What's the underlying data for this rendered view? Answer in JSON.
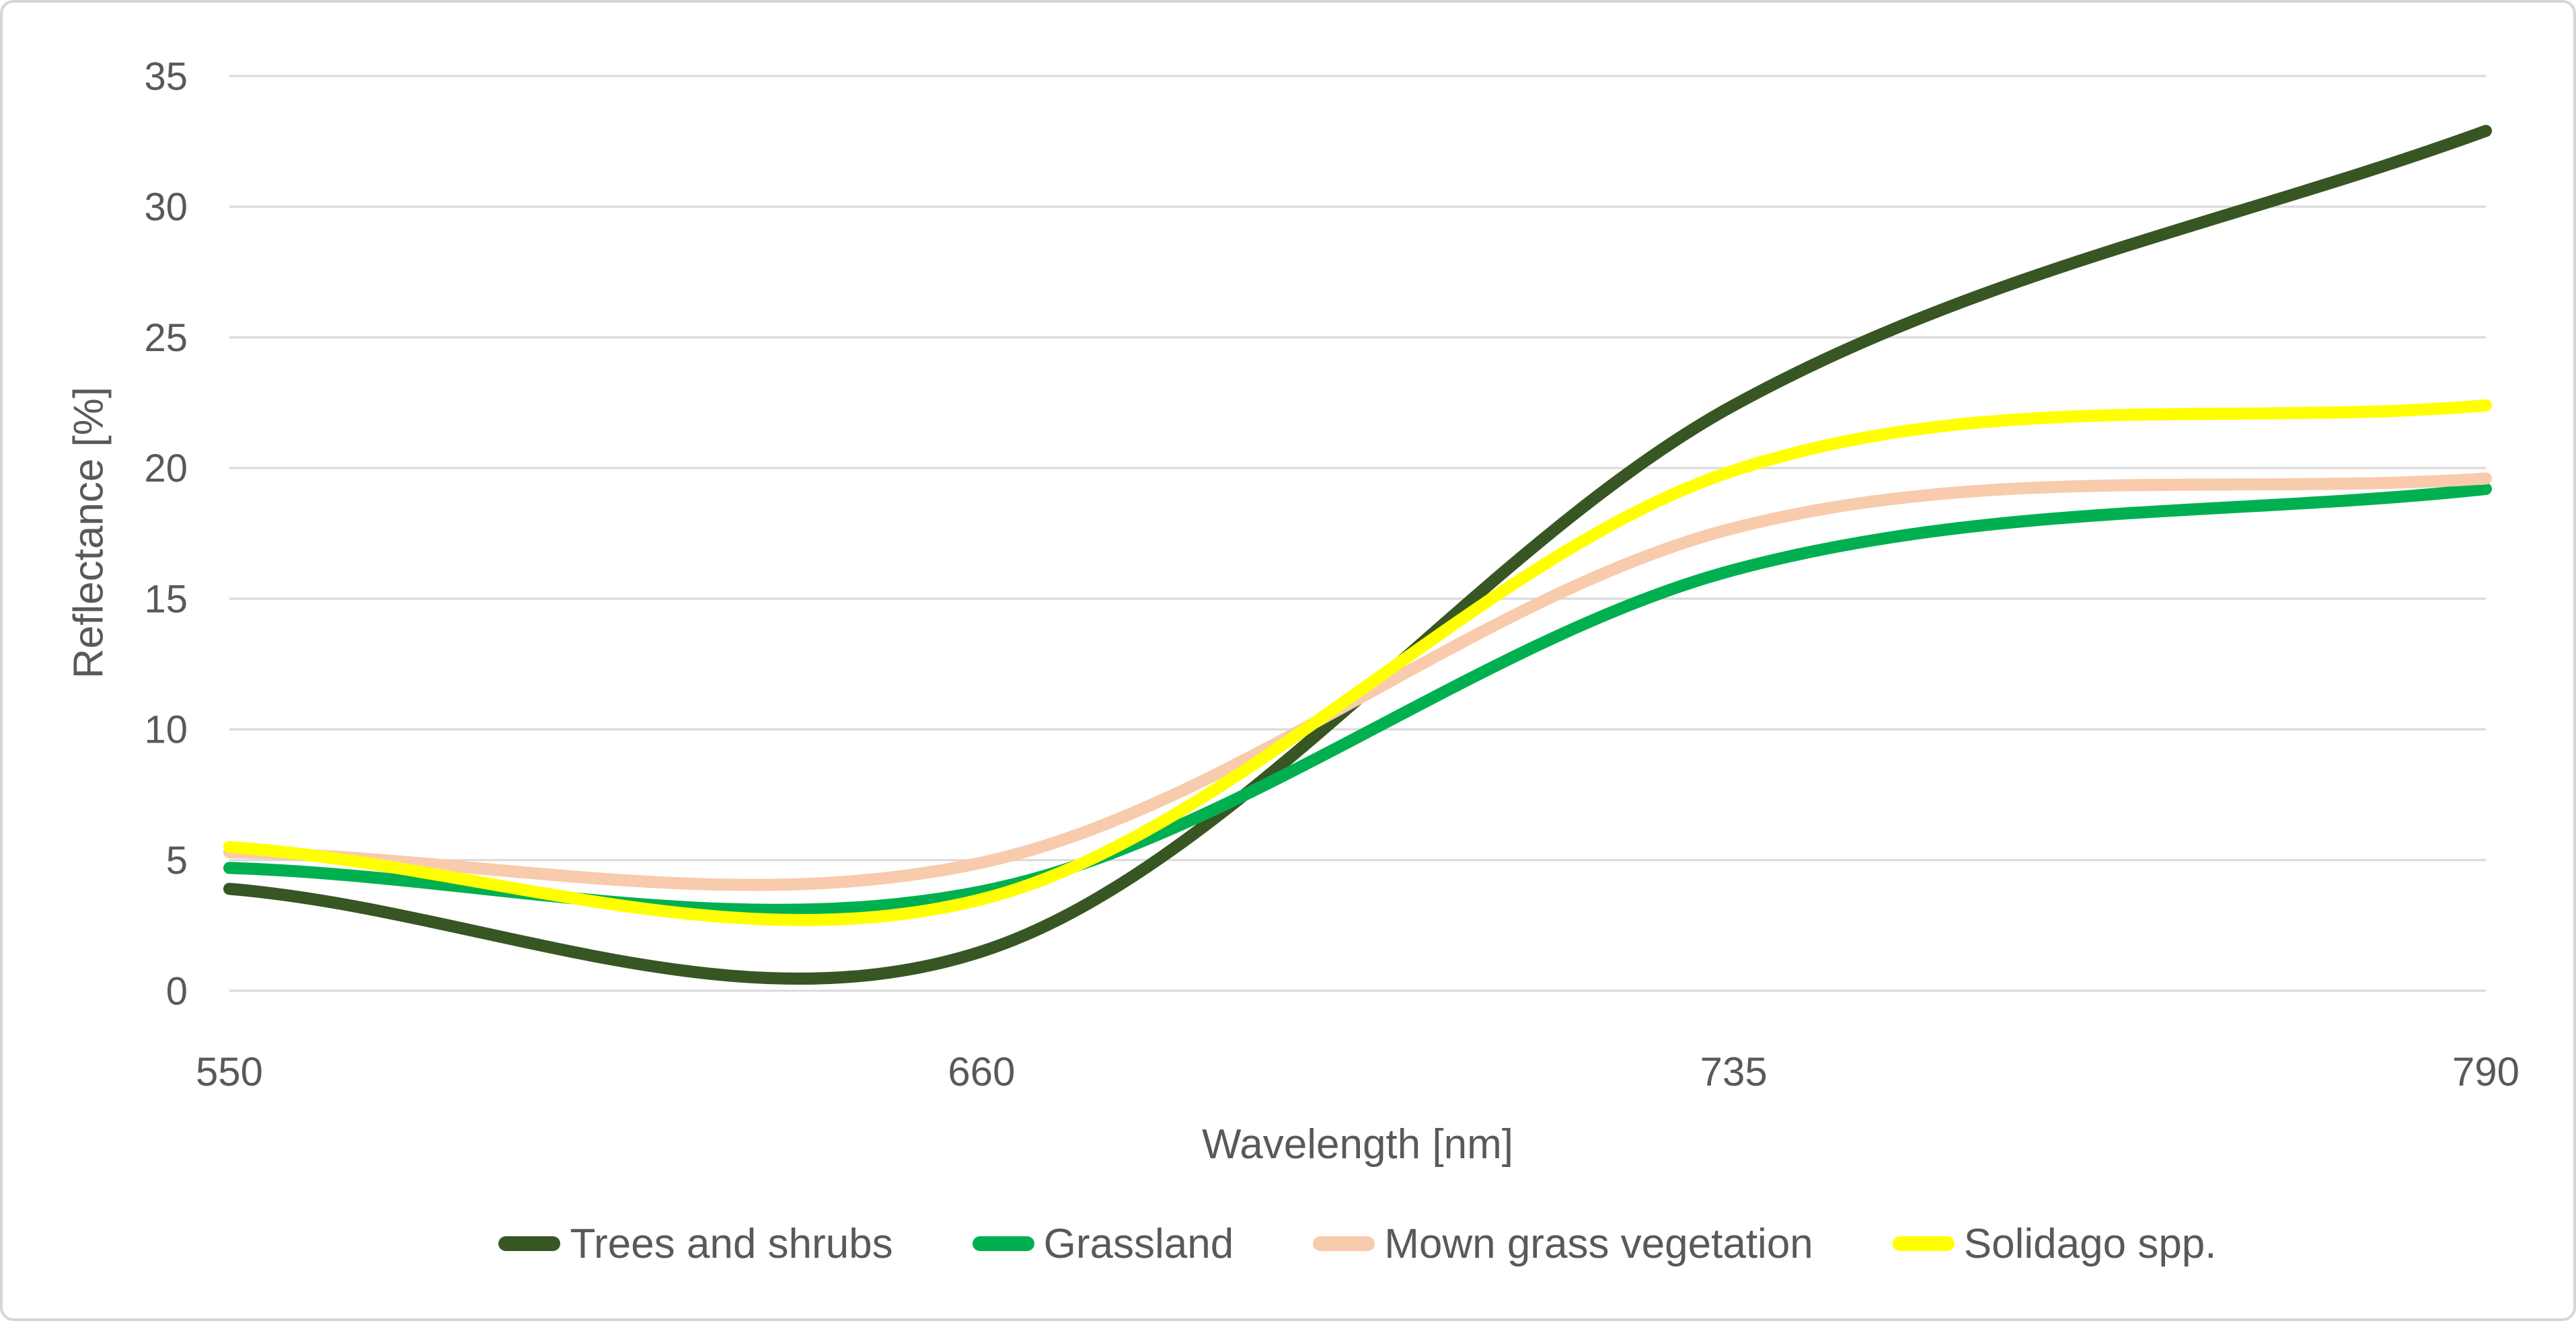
{
  "chart_data": {
    "type": "line",
    "smooth": true,
    "x_mode": "category",
    "categories": [
      "550",
      "660",
      "735",
      "790"
    ],
    "series": [
      {
        "name": "Trees and shrubs",
        "color": "#375623",
        "values": [
          3.9,
          1.5,
          22.4,
          32.9
        ]
      },
      {
        "name": "Grassland",
        "color": "#00B050",
        "values": [
          4.7,
          3.8,
          16.1,
          19.2
        ]
      },
      {
        "name": "Mown grass vegetation",
        "color": "#F8CBAD",
        "values": [
          5.3,
          4.9,
          17.7,
          19.6
        ]
      },
      {
        "name": "Solidago spp.",
        "color": "#FFFF00",
        "values": [
          5.5,
          3.5,
          19.9,
          22.4
        ]
      }
    ],
    "xlabel": "Wavelength [nm]",
    "ylabel": "Reflectance [%]",
    "ylim": [
      0,
      35
    ],
    "yticks": [
      0,
      5,
      10,
      15,
      20,
      25,
      30,
      35
    ],
    "grid": true,
    "gridline_color": "#d9d9d9",
    "text_color": "#595959",
    "legend_position": "bottom"
  }
}
